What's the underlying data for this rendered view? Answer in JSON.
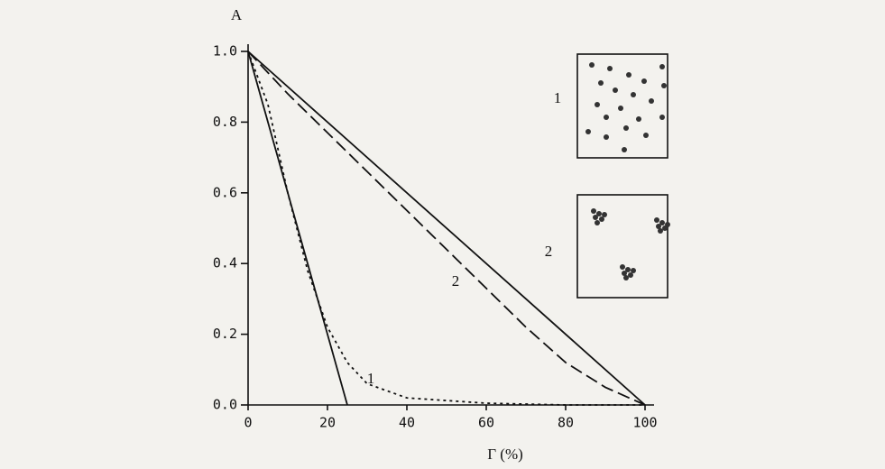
{
  "chart_data": {
    "type": "line",
    "y_label": "A",
    "x_label": "Γ (%)",
    "xlim": [
      0,
      100
    ],
    "xticks": [
      0,
      20,
      40,
      60,
      80,
      100
    ],
    "ylim": [
      0,
      1
    ],
    "yticks": [
      {
        "value": 0,
        "label": "0.0"
      },
      {
        "value": 0.2,
        "label": "0.2"
      },
      {
        "value": 0.4,
        "label": "0.4"
      },
      {
        "value": 0.6,
        "label": "0.6"
      },
      {
        "value": 0.8,
        "label": "0.8"
      },
      {
        "value": 1,
        "label": "1.0"
      }
    ],
    "series": [
      {
        "color": "#111111",
        "style": "solid",
        "x": [
          0,
          100
        ],
        "values": [
          1,
          0
        ]
      },
      {
        "name": "2",
        "color": "#111111",
        "style": "dashed",
        "x": [
          0,
          10,
          20,
          30,
          40,
          50,
          60,
          70,
          80,
          90,
          100
        ],
        "values": [
          1,
          0.88,
          0.77,
          0.66,
          0.55,
          0.44,
          0.33,
          0.22,
          0.12,
          0.05,
          0
        ]
      },
      {
        "color": "#111111",
        "style": "solid",
        "x": [
          0,
          25
        ],
        "values": [
          1,
          0
        ]
      },
      {
        "name": "1",
        "color": "#111111",
        "style": "dotted",
        "x": [
          0,
          5,
          10,
          15,
          20,
          25,
          30,
          40,
          60,
          80,
          100
        ],
        "values": [
          1,
          0.85,
          0.6,
          0.38,
          0.22,
          0.12,
          0.06,
          0.02,
          0.005,
          0,
          0
        ]
      }
    ],
    "annotations": [
      "1",
      "2"
    ]
  }
}
